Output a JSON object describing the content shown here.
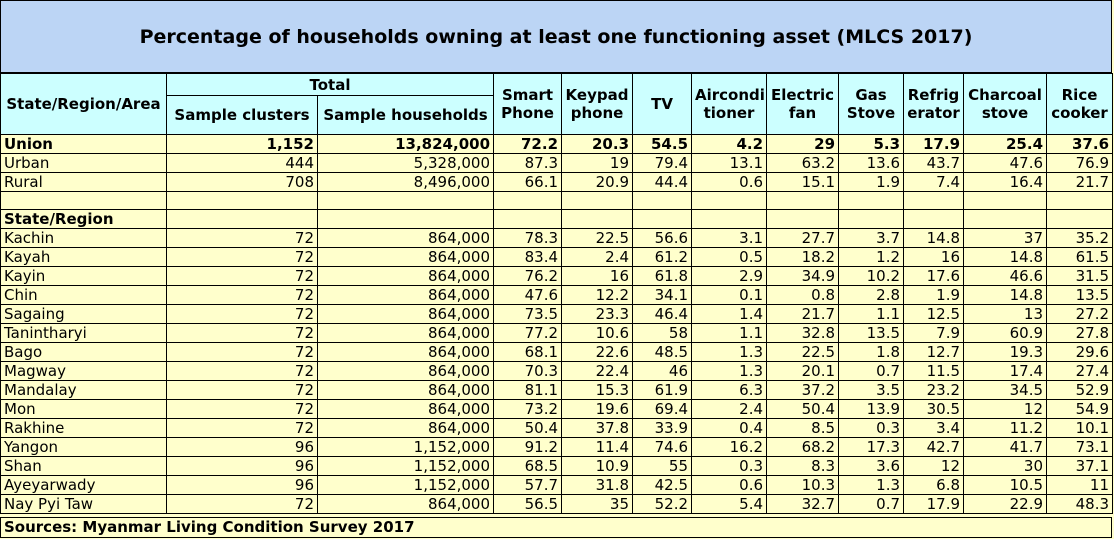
{
  "title": "Percentage of households owning at least one functioning asset (MLCS 2017)",
  "headers": {
    "area": "State/Region/Area",
    "total": "Total",
    "sample_clusters": "Sample clusters",
    "sample_households": "Sample households",
    "smart_phone": "Smart Phone",
    "keypad_phone": "Keypad phone",
    "tv": "TV",
    "airconditioner": "Airconditioner",
    "airconditioner_l1": "Aircondi",
    "airconditioner_l2": "tioner",
    "electric_fan_l1": "Electric",
    "electric_fan_l2": "fan",
    "gas_stove_l1": "Gas",
    "gas_stove_l2": "Stove",
    "refrigerator_l1": "Refrig",
    "refrigerator_l2": "erator",
    "charcoal_l1": "Charcoal",
    "charcoal_l2": "stove",
    "rice_l1": "Rice",
    "rice_l2": "cooker",
    "smart_l1": "Smart",
    "smart_l2": "Phone",
    "keypad_l1": "Keypad",
    "keypad_l2": "phone"
  },
  "summary_rows": [
    {
      "name": "Union",
      "clusters": "1,152",
      "households": "13,824,000",
      "smart": "72.2",
      "keypad": "20.3",
      "tv": "54.5",
      "aircon": "4.2",
      "fan": "29",
      "gas": "5.3",
      "fridge": "17.9",
      "charcoal": "25.4",
      "rice": "37.6"
    },
    {
      "name": "Urban",
      "clusters": "444",
      "households": "5,328,000",
      "smart": "87.3",
      "keypad": "19",
      "tv": "79.4",
      "aircon": "13.1",
      "fan": "63.2",
      "gas": "13.6",
      "fridge": "43.7",
      "charcoal": "47.6",
      "rice": "76.9"
    },
    {
      "name": "Rural",
      "clusters": "708",
      "households": "8,496,000",
      "smart": "66.1",
      "keypad": "20.9",
      "tv": "44.4",
      "aircon": "0.6",
      "fan": "15.1",
      "gas": "1.9",
      "fridge": "7.4",
      "charcoal": "16.4",
      "rice": "21.7"
    }
  ],
  "section_label": "State/Region",
  "region_rows": [
    {
      "name": "Kachin",
      "clusters": "72",
      "households": "864,000",
      "smart": "78.3",
      "keypad": "22.5",
      "tv": "56.6",
      "aircon": "3.1",
      "fan": "27.7",
      "gas": "3.7",
      "fridge": "14.8",
      "charcoal": "37",
      "rice": "35.2"
    },
    {
      "name": "Kayah",
      "clusters": "72",
      "households": "864,000",
      "smart": "83.4",
      "keypad": "2.4",
      "tv": "61.2",
      "aircon": "0.5",
      "fan": "18.2",
      "gas": "1.2",
      "fridge": "16",
      "charcoal": "14.8",
      "rice": "61.5"
    },
    {
      "name": "Kayin",
      "clusters": "72",
      "households": "864,000",
      "smart": "76.2",
      "keypad": "16",
      "tv": "61.8",
      "aircon": "2.9",
      "fan": "34.9",
      "gas": "10.2",
      "fridge": "17.6",
      "charcoal": "46.6",
      "rice": "31.5"
    },
    {
      "name": "Chin",
      "clusters": "72",
      "households": "864,000",
      "smart": "47.6",
      "keypad": "12.2",
      "tv": "34.1",
      "aircon": "0.1",
      "fan": "0.8",
      "gas": "2.8",
      "fridge": "1.9",
      "charcoal": "14.8",
      "rice": "13.5"
    },
    {
      "name": "Sagaing",
      "clusters": "72",
      "households": "864,000",
      "smart": "73.5",
      "keypad": "23.3",
      "tv": "46.4",
      "aircon": "1.4",
      "fan": "21.7",
      "gas": "1.1",
      "fridge": "12.5",
      "charcoal": "13",
      "rice": "27.2"
    },
    {
      "name": "Tanintharyi",
      "clusters": "72",
      "households": "864,000",
      "smart": "77.2",
      "keypad": "10.6",
      "tv": "58",
      "aircon": "1.1",
      "fan": "32.8",
      "gas": "13.5",
      "fridge": "7.9",
      "charcoal": "60.9",
      "rice": "27.8"
    },
    {
      "name": "Bago",
      "clusters": "72",
      "households": "864,000",
      "smart": "68.1",
      "keypad": "22.6",
      "tv": "48.5",
      "aircon": "1.3",
      "fan": "22.5",
      "gas": "1.8",
      "fridge": "12.7",
      "charcoal": "19.3",
      "rice": "29.6"
    },
    {
      "name": "Magway",
      "clusters": "72",
      "households": "864,000",
      "smart": "70.3",
      "keypad": "22.4",
      "tv": "46",
      "aircon": "1.3",
      "fan": "20.1",
      "gas": "0.7",
      "fridge": "11.5",
      "charcoal": "17.4",
      "rice": "27.4"
    },
    {
      "name": "Mandalay",
      "clusters": "72",
      "households": "864,000",
      "smart": "81.1",
      "keypad": "15.3",
      "tv": "61.9",
      "aircon": "6.3",
      "fan": "37.2",
      "gas": "3.5",
      "fridge": "23.2",
      "charcoal": "34.5",
      "rice": "52.9"
    },
    {
      "name": "Mon",
      "clusters": "72",
      "households": "864,000",
      "smart": "73.2",
      "keypad": "19.6",
      "tv": "69.4",
      "aircon": "2.4",
      "fan": "50.4",
      "gas": "13.9",
      "fridge": "30.5",
      "charcoal": "12",
      "rice": "54.9"
    },
    {
      "name": "Rakhine",
      "clusters": "72",
      "households": "864,000",
      "smart": "50.4",
      "keypad": "37.8",
      "tv": "33.9",
      "aircon": "0.4",
      "fan": "8.5",
      "gas": "0.3",
      "fridge": "3.4",
      "charcoal": "11.2",
      "rice": "10.1"
    },
    {
      "name": "Yangon",
      "clusters": "96",
      "households": "1,152,000",
      "smart": "91.2",
      "keypad": "11.4",
      "tv": "74.6",
      "aircon": "16.2",
      "fan": "68.2",
      "gas": "17.3",
      "fridge": "42.7",
      "charcoal": "41.7",
      "rice": "73.1"
    },
    {
      "name": "Shan",
      "clusters": "96",
      "households": "1,152,000",
      "smart": "68.5",
      "keypad": "10.9",
      "tv": "55",
      "aircon": "0.3",
      "fan": "8.3",
      "gas": "3.6",
      "fridge": "12",
      "charcoal": "30",
      "rice": "37.1"
    },
    {
      "name": "Ayeyarwady",
      "clusters": "96",
      "households": "1,152,000",
      "smart": "57.7",
      "keypad": "31.8",
      "tv": "42.5",
      "aircon": "0.6",
      "fan": "10.3",
      "gas": "1.3",
      "fridge": "6.8",
      "charcoal": "10.5",
      "rice": "11"
    },
    {
      "name": "Nay Pyi Taw",
      "clusters": "72",
      "households": "864,000",
      "smart": "56.5",
      "keypad": "35",
      "tv": "52.2",
      "aircon": "5.4",
      "fan": "32.7",
      "gas": "0.7",
      "fridge": "17.9",
      "charcoal": "22.9",
      "rice": "48.3"
    }
  ],
  "source": "Sources: Myanmar Living Condition Survey 2017",
  "colors": {
    "header_bg": "#ccffff",
    "title_bg": "#bcd5f5",
    "cell_bg": "#ffffcc"
  }
}
